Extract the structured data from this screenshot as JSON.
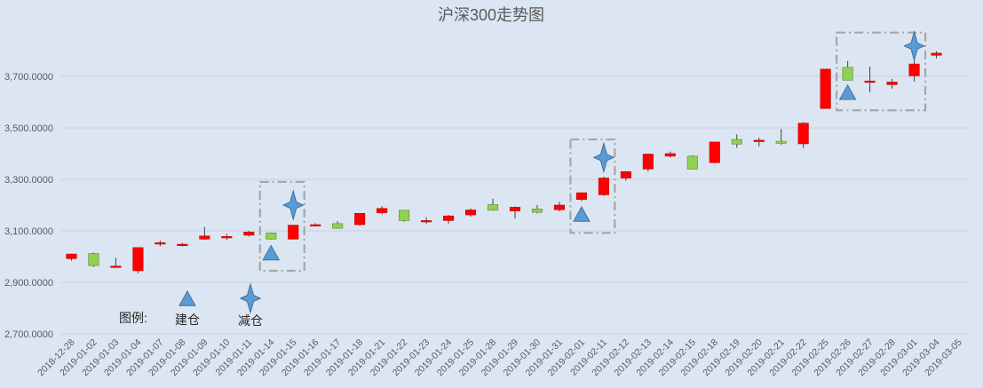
{
  "chart_data": {
    "type": "candlestick",
    "title": "沪深300走势图",
    "ylim": [
      2700,
      3900
    ],
    "yticks": [
      2700,
      2900,
      3100,
      3300,
      3500,
      3700
    ],
    "ytick_labels": [
      "2,700.0000",
      "2,900.0000",
      "3,100.0000",
      "3,300.0000",
      "3,500.0000",
      "3,700.0000"
    ],
    "grid": true,
    "categories": [
      "2018-12-28",
      "2019-01-02",
      "2019-01-03",
      "2019-01-04",
      "2019-01-07",
      "2019-01-08",
      "2019-01-09",
      "2019-01-10",
      "2019-01-11",
      "2019-01-14",
      "2019-01-15",
      "2019-01-16",
      "2019-01-17",
      "2019-01-18",
      "2019-01-21",
      "2019-01-22",
      "2019-01-23",
      "2019-01-24",
      "2019-01-25",
      "2019-01-28",
      "2019-01-29",
      "2019-01-30",
      "2019-01-31",
      "2019-02-01",
      "2019-02-11",
      "2019-02-12",
      "2019-02-13",
      "2019-02-14",
      "2019-02-15",
      "2019-02-18",
      "2019-02-19",
      "2019-02-20",
      "2019-02-21",
      "2019-02-22",
      "2019-02-25",
      "2019-02-26",
      "2019-02-27",
      "2019-02-28",
      "2019-03-01",
      "2019-03-04",
      "2019-03-05"
    ],
    "ohlc": [
      [
        2992,
        3010,
        2984,
        3010
      ],
      [
        3012,
        3016,
        2960,
        2965
      ],
      [
        2963,
        2995,
        2958,
        2963
      ],
      [
        2945,
        3035,
        2935,
        3035
      ],
      [
        3050,
        3062,
        3040,
        3054
      ],
      [
        3046,
        3054,
        3040,
        3048
      ],
      [
        3068,
        3115,
        3065,
        3080
      ],
      [
        3075,
        3088,
        3064,
        3078
      ],
      [
        3083,
        3100,
        3078,
        3095
      ],
      [
        3092,
        3094,
        3066,
        3068
      ],
      [
        3068,
        3122,
        3066,
        3122
      ],
      [
        3122,
        3130,
        3118,
        3124
      ],
      [
        3128,
        3138,
        3108,
        3110
      ],
      [
        3124,
        3168,
        3120,
        3168
      ],
      [
        3170,
        3196,
        3164,
        3187
      ],
      [
        3180,
        3181,
        3136,
        3140
      ],
      [
        3136,
        3153,
        3128,
        3140
      ],
      [
        3140,
        3162,
        3128,
        3158
      ],
      [
        3162,
        3187,
        3155,
        3181
      ],
      [
        3202,
        3225,
        3178,
        3180
      ],
      [
        3177,
        3195,
        3148,
        3192
      ],
      [
        3185,
        3200,
        3168,
        3172
      ],
      [
        3182,
        3212,
        3176,
        3200
      ],
      [
        3222,
        3248,
        3215,
        3248
      ],
      [
        3240,
        3310,
        3236,
        3305
      ],
      [
        3305,
        3332,
        3295,
        3330
      ],
      [
        3340,
        3400,
        3330,
        3398
      ],
      [
        3390,
        3408,
        3385,
        3400
      ],
      [
        3390,
        3394,
        3338,
        3340
      ],
      [
        3365,
        3445,
        3362,
        3445
      ],
      [
        3455,
        3475,
        3422,
        3437
      ],
      [
        3448,
        3462,
        3428,
        3452
      ],
      [
        3448,
        3495,
        3435,
        3440
      ],
      [
        3438,
        3522,
        3422,
        3518
      ],
      [
        3575,
        3728,
        3575,
        3728
      ],
      [
        3735,
        3760,
        3685,
        3685
      ],
      [
        3678,
        3738,
        3638,
        3682
      ],
      [
        3668,
        3690,
        3652,
        3678
      ],
      [
        3702,
        3775,
        3680,
        3748
      ],
      [
        3782,
        3798,
        3770,
        3790
      ],
      null
    ],
    "up_color": "#ff0000",
    "down_color": "#92d050",
    "marker_color": "#5b9bd5",
    "build_markers": [
      {
        "date": "2019-01-14",
        "y": 3012
      },
      {
        "date": "2019-02-01",
        "y": 3162
      },
      {
        "date": "2019-02-26",
        "y": 3635
      }
    ],
    "reduce_markers": [
      {
        "date": "2019-01-15",
        "y": 3200
      },
      {
        "date": "2019-02-11",
        "y": 3385
      },
      {
        "date": "2019-03-01",
        "y": 3818
      }
    ],
    "highlight_boxes": [
      {
        "from": "2019-01-14",
        "to": "2019-01-15",
        "ymin": 2945,
        "ymax": 3290
      },
      {
        "from": "2019-02-01",
        "to": "2019-02-11",
        "ymin": 3092,
        "ymax": 3455
      },
      {
        "from": "2019-02-26",
        "to": "2019-03-01",
        "ymin": 3568,
        "ymax": 3870
      }
    ],
    "legend": {
      "title": "图例:",
      "build_label": "建仓",
      "reduce_label": "减仓",
      "placement": "bottom-left"
    }
  }
}
